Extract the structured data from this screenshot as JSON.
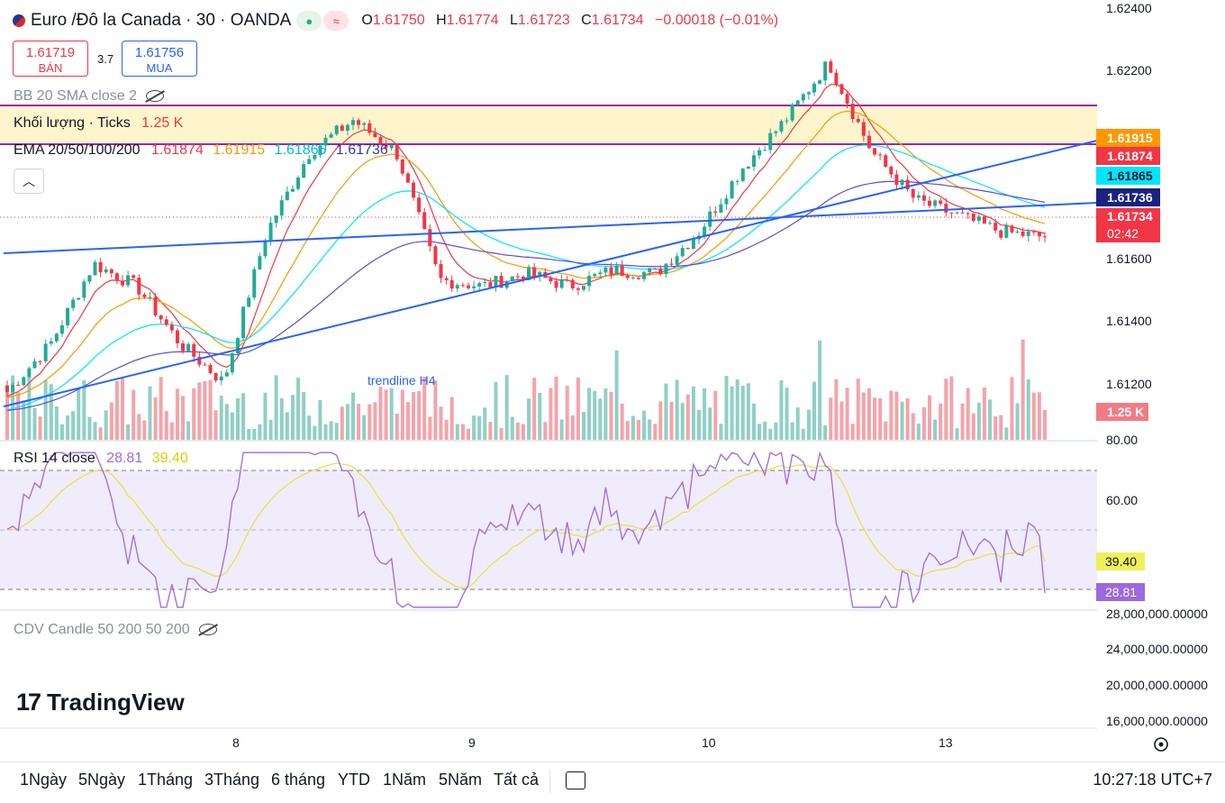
{
  "header": {
    "symbol": "Euro /Đô la Canada · 30 · OANDA",
    "open_label": "O",
    "open": "1.61750",
    "high_label": "H",
    "high": "1.61774",
    "low_label": "L",
    "low": "1.61723",
    "close_label": "C",
    "close": "1.61734",
    "change": "−0.00018 (−0.01%)"
  },
  "trade": {
    "sell_price": "1.61719",
    "sell_label": "BÁN",
    "spread": "3.7",
    "buy_price": "1.61756",
    "buy_label": "MUA"
  },
  "legends": {
    "bb": "BB 20 SMA close 2",
    "volume_name": "Khối lượng · Ticks",
    "volume_value": "1.25 K",
    "ema_name": "EMA 20/50/100/200",
    "ema20": "1.61874",
    "ema50": "1.61915",
    "ema100": "1.61865",
    "ema200": "1.61736",
    "rsi_name": "RSI 14 close",
    "rsi_value": "28.81",
    "rsi_ma": "39.40",
    "cdv": "CDV Candle 50 200 50 200",
    "collapse_icon": "chevron-up-icon"
  },
  "annotation": "trendline H4",
  "price_axis": [
    "1.62400",
    "1.62200",
    "1.61600",
    "1.61400",
    "1.61200"
  ],
  "badges": {
    "ema50": "1.61915",
    "ema20": "1.61874",
    "ema100": "1.61865",
    "ema200": "1.61736",
    "last": "1.61734",
    "countdown": "02:42",
    "volume": "1.25 K"
  },
  "rsi_axis": [
    "80.00",
    "60.00"
  ],
  "rsi_badges": {
    "ma": "39.40",
    "rsi": "28.81"
  },
  "cdv_axis": [
    "28,000,000.00000",
    "24,000,000.00000",
    "20,000,000.00000",
    "16,000,000.00000"
  ],
  "time_axis": [
    "8",
    "9",
    "10",
    "13"
  ],
  "ranges": [
    "1Ngày",
    "5Ngày",
    "1Tháng",
    "3Tháng",
    "6 tháng",
    "YTD",
    "1Năm",
    "5Năm",
    "Tất cả"
  ],
  "clock": "10:27:18 UTC+7",
  "brand": "TradingView",
  "colors": {
    "up": "#22ab94",
    "down": "#f23645",
    "ema20": "#f23645",
    "ema50": "#ff9800",
    "ema100": "#00e5ff",
    "ema200": "#5b4fcf",
    "trend": "#2962ff",
    "rsi": "#9c6ade",
    "rsi_ma": "#e4e44a"
  },
  "chart_data": {
    "type": "candlestick",
    "instrument": "EUR/CAD 30m",
    "price_range": [
      1.6108,
      1.6245
    ],
    "candle_closes_sample": [
      1.6125,
      1.614,
      1.6165,
      1.6158,
      1.614,
      1.6128,
      1.6175,
      1.62,
      1.621,
      1.62,
      1.616,
      1.6158,
      1.6162,
      1.6158,
      1.6163,
      1.6162,
      1.6175,
      1.6195,
      1.621,
      1.6228,
      1.62,
      1.6185,
      1.618,
      1.6175,
      1.61734
    ],
    "ema": {
      "ema20": 1.61874,
      "ema50": 1.61915,
      "ema100": 1.61865,
      "ema200": 1.61736
    },
    "rsi": {
      "value": 28.81,
      "ma": 39.4,
      "band": [
        30,
        70
      ]
    },
    "volume_last": "1.25 K"
  }
}
